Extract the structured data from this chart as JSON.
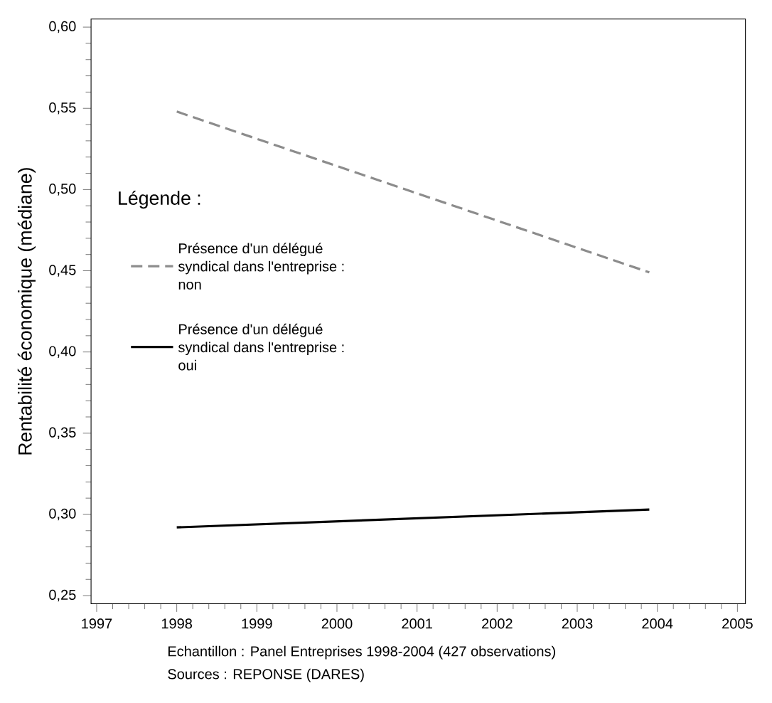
{
  "chart_data": {
    "type": "line",
    "ylabel": "Rentabilité économique (médiane)",
    "legend_title": "Légende :",
    "x": [
      1998,
      2003.9
    ],
    "series": [
      {
        "name": "Présence d'un délégué syndical dans l'entreprise : non",
        "color": "#8c8c8c",
        "line_style": "dashed",
        "values": [
          0.548,
          0.449
        ]
      },
      {
        "name": "Présence d'un délégué syndical dans l'entreprise : oui",
        "color": "#000000",
        "line_style": "solid",
        "values": [
          0.292,
          0.303
        ]
      }
    ],
    "xlim": [
      1996.93,
      2005.1
    ],
    "xticks": [
      1997,
      1998,
      1999,
      2000,
      2001,
      2002,
      2003,
      2004,
      2005
    ],
    "ylim": [
      0.245,
      0.605
    ],
    "yticks": [
      {
        "value": 0.25,
        "label": "0,25"
      },
      {
        "value": 0.3,
        "label": "0,30"
      },
      {
        "value": 0.35,
        "label": "0,35"
      },
      {
        "value": 0.4,
        "label": "0,40"
      },
      {
        "value": 0.45,
        "label": "0,45"
      },
      {
        "value": 0.5,
        "label": "0,50"
      },
      {
        "value": 0.55,
        "label": "0,55"
      },
      {
        "value": 0.6,
        "label": "0,60"
      }
    ],
    "legend": "left",
    "annotations": [
      "Echantillon : Panel Entreprises 1998-2004 (427 observations)",
      "Sources : REPONSE (DARES)"
    ]
  }
}
